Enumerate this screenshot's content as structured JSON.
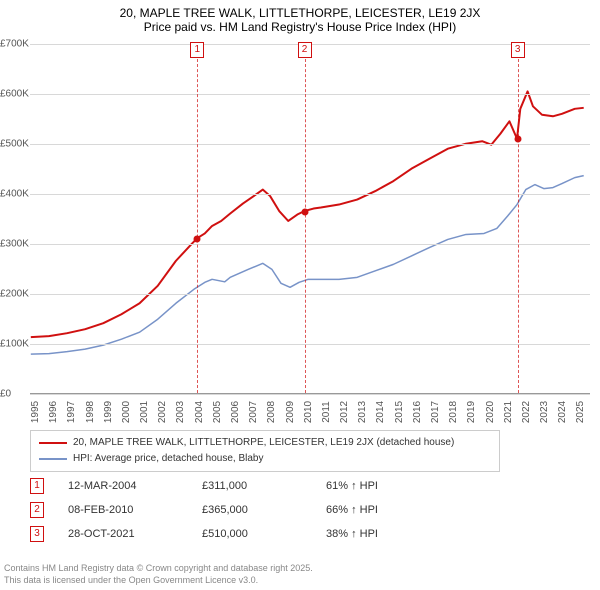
{
  "title": {
    "line1": "20, MAPLE TREE WALK, LITTLETHORPE, LEICESTER, LE19 2JX",
    "line2": "Price paid vs. HM Land Registry's House Price Index (HPI)",
    "fontsize": 12,
    "color": "#000000"
  },
  "chart": {
    "type": "line",
    "background_color": "#ffffff",
    "grid_color": "#d8d8d8",
    "axis_color": "#999999",
    "xlim": [
      1995,
      2025.8
    ],
    "ylim": [
      0,
      700000
    ],
    "ytick_step": 100000,
    "yticks": [
      {
        "v": 0,
        "label": "£0"
      },
      {
        "v": 100000,
        "label": "£100K"
      },
      {
        "v": 200000,
        "label": "£200K"
      },
      {
        "v": 300000,
        "label": "£300K"
      },
      {
        "v": 400000,
        "label": "£400K"
      },
      {
        "v": 500000,
        "label": "£500K"
      },
      {
        "v": 600000,
        "label": "£600K"
      },
      {
        "v": 700000,
        "label": "£700K"
      }
    ],
    "xticks": [
      1995,
      1996,
      1997,
      1998,
      1999,
      2000,
      2001,
      2002,
      2003,
      2004,
      2005,
      2006,
      2007,
      2008,
      2009,
      2010,
      2011,
      2012,
      2013,
      2014,
      2015,
      2016,
      2017,
      2018,
      2019,
      2020,
      2021,
      2022,
      2023,
      2024,
      2025
    ],
    "tick_fontsize": 10,
    "series": [
      {
        "name": "price_paid",
        "label": "20, MAPLE TREE WALK, LITTLETHORPE, LEICESTER, LE19 2JX (detached house)",
        "color": "#d01010",
        "line_width": 2,
        "data": [
          [
            1995,
            112000
          ],
          [
            1996,
            114000
          ],
          [
            1997,
            120000
          ],
          [
            1998,
            128000
          ],
          [
            1999,
            140000
          ],
          [
            2000,
            158000
          ],
          [
            2001,
            180000
          ],
          [
            2002,
            215000
          ],
          [
            2003,
            265000
          ],
          [
            2003.9,
            300000
          ],
          [
            2004.2,
            311000
          ],
          [
            2004.6,
            320000
          ],
          [
            2005,
            335000
          ],
          [
            2005.5,
            345000
          ],
          [
            2006,
            360000
          ],
          [
            2006.7,
            380000
          ],
          [
            2007.3,
            395000
          ],
          [
            2007.8,
            408000
          ],
          [
            2008.2,
            395000
          ],
          [
            2008.7,
            365000
          ],
          [
            2009.2,
            345000
          ],
          [
            2009.7,
            358000
          ],
          [
            2010.1,
            365000
          ],
          [
            2010.6,
            370000
          ],
          [
            2011,
            372000
          ],
          [
            2012,
            378000
          ],
          [
            2013,
            388000
          ],
          [
            2014,
            405000
          ],
          [
            2015,
            425000
          ],
          [
            2016,
            450000
          ],
          [
            2017,
            470000
          ],
          [
            2018,
            490000
          ],
          [
            2019,
            500000
          ],
          [
            2019.9,
            505000
          ],
          [
            2020.4,
            498000
          ],
          [
            2020.9,
            520000
          ],
          [
            2021.4,
            545000
          ],
          [
            2021.82,
            510000
          ],
          [
            2022.0,
            570000
          ],
          [
            2022.4,
            605000
          ],
          [
            2022.7,
            575000
          ],
          [
            2023.2,
            558000
          ],
          [
            2023.8,
            555000
          ],
          [
            2024.3,
            560000
          ],
          [
            2025.0,
            570000
          ],
          [
            2025.5,
            572000
          ]
        ]
      },
      {
        "name": "hpi",
        "label": "HPI: Average price, detached house, Blaby",
        "color": "#7893c8",
        "line_width": 1.5,
        "data": [
          [
            1995,
            78000
          ],
          [
            1996,
            79000
          ],
          [
            1997,
            83000
          ],
          [
            1998,
            88000
          ],
          [
            1999,
            96000
          ],
          [
            2000,
            108000
          ],
          [
            2001,
            122000
          ],
          [
            2002,
            148000
          ],
          [
            2003,
            180000
          ],
          [
            2004,
            208000
          ],
          [
            2004.6,
            222000
          ],
          [
            2005,
            228000
          ],
          [
            2005.7,
            223000
          ],
          [
            2006,
            232000
          ],
          [
            2007,
            248000
          ],
          [
            2007.8,
            260000
          ],
          [
            2008.3,
            248000
          ],
          [
            2008.8,
            220000
          ],
          [
            2009.3,
            212000
          ],
          [
            2009.8,
            222000
          ],
          [
            2010.3,
            228000
          ],
          [
            2011,
            228000
          ],
          [
            2012,
            228000
          ],
          [
            2013,
            232000
          ],
          [
            2014,
            245000
          ],
          [
            2015,
            258000
          ],
          [
            2016,
            275000
          ],
          [
            2017,
            292000
          ],
          [
            2018,
            308000
          ],
          [
            2019,
            318000
          ],
          [
            2020,
            320000
          ],
          [
            2020.7,
            330000
          ],
          [
            2021.3,
            355000
          ],
          [
            2021.82,
            378000
          ],
          [
            2022.3,
            408000
          ],
          [
            2022.8,
            418000
          ],
          [
            2023.3,
            410000
          ],
          [
            2023.8,
            412000
          ],
          [
            2024.3,
            420000
          ],
          [
            2025.0,
            432000
          ],
          [
            2025.5,
            436000
          ]
        ]
      }
    ],
    "markers": [
      {
        "n": "1",
        "x": 2004.2,
        "y": 311000,
        "color": "#d01010"
      },
      {
        "n": "2",
        "x": 2010.1,
        "y": 365000,
        "color": "#d01010"
      },
      {
        "n": "3",
        "x": 2021.82,
        "y": 510000,
        "color": "#d01010"
      }
    ]
  },
  "legend": {
    "border_color": "#cccccc",
    "fontsize": 10
  },
  "events": [
    {
      "n": "1",
      "date": "12-MAR-2004",
      "price": "£311,000",
      "hpi": "61% ↑ HPI"
    },
    {
      "n": "2",
      "date": "08-FEB-2010",
      "price": "£365,000",
      "hpi": "66% ↑ HPI"
    },
    {
      "n": "3",
      "date": "28-OCT-2021",
      "price": "£510,000",
      "hpi": "38% ↑ HPI"
    }
  ],
  "footer": {
    "line1": "Contains HM Land Registry data © Crown copyright and database right 2025.",
    "line2": "This data is licensed under the Open Government Licence v3.0.",
    "color": "#888888",
    "fontsize": 9
  }
}
